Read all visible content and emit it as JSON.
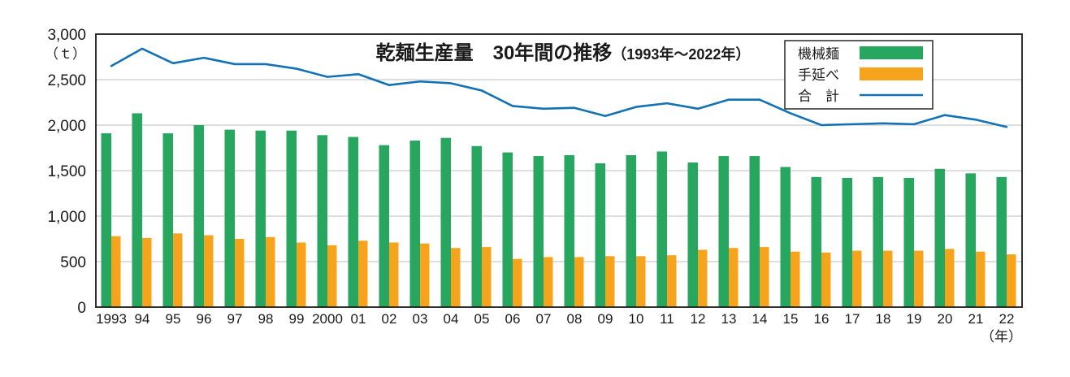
{
  "chart": {
    "title_main": "乾麺生産量　30年間の推移",
    "title_sub": "（1993年～2022年）",
    "y_unit": "（ｔ）",
    "x_unit": "（年）"
  },
  "chart_data": {
    "type": "bar",
    "title": "乾麺生産量　30年間の推移（1993年～2022年）",
    "xlabel": "（年）",
    "ylabel": "（ｔ）",
    "ylim": [
      0,
      3000
    ],
    "ytick_interval": 500,
    "ytick_labels": [
      "0",
      "500",
      "1,000",
      "1,500",
      "2,000",
      "2,500",
      "3,000"
    ],
    "grid": "horizontal",
    "legend_position": "top-right",
    "categories": [
      "1993",
      "94",
      "95",
      "96",
      "97",
      "98",
      "99",
      "2000",
      "01",
      "02",
      "03",
      "04",
      "05",
      "06",
      "07",
      "08",
      "09",
      "10",
      "11",
      "12",
      "13",
      "14",
      "15",
      "16",
      "17",
      "18",
      "19",
      "20",
      "21",
      "22"
    ],
    "series": [
      {
        "name": "機械麺",
        "legend_label": "機械麺",
        "kind": "bar",
        "color": "#26a65e",
        "values": [
          1910,
          2130,
          1910,
          2000,
          1950,
          1940,
          1940,
          1890,
          1870,
          1780,
          1830,
          1860,
          1770,
          1700,
          1660,
          1670,
          1580,
          1670,
          1710,
          1590,
          1660,
          1660,
          1540,
          1430,
          1420,
          1430,
          1420,
          1520,
          1470,
          1430
        ]
      },
      {
        "name": "手延べ",
        "legend_label": "手延べ",
        "kind": "bar",
        "color": "#f6a41d",
        "values": [
          780,
          760,
          810,
          790,
          750,
          770,
          710,
          680,
          730,
          710,
          700,
          650,
          660,
          530,
          550,
          550,
          560,
          560,
          570,
          630,
          650,
          660,
          610,
          600,
          620,
          620,
          620,
          640,
          610,
          580
        ]
      },
      {
        "name": "合計",
        "legend_label": "合　計",
        "kind": "line",
        "color": "#1372b6",
        "values": [
          2650,
          2840,
          2680,
          2740,
          2670,
          2670,
          2620,
          2530,
          2560,
          2440,
          2480,
          2460,
          2380,
          2210,
          2180,
          2190,
          2100,
          2200,
          2240,
          2180,
          2280,
          2280,
          2130,
          2000,
          2010,
          2020,
          2010,
          2110,
          2060,
          1980
        ]
      }
    ]
  },
  "colors": {
    "frame": "#1a1a1a",
    "grid": "#bdbdbd",
    "background": "#ffffff"
  }
}
